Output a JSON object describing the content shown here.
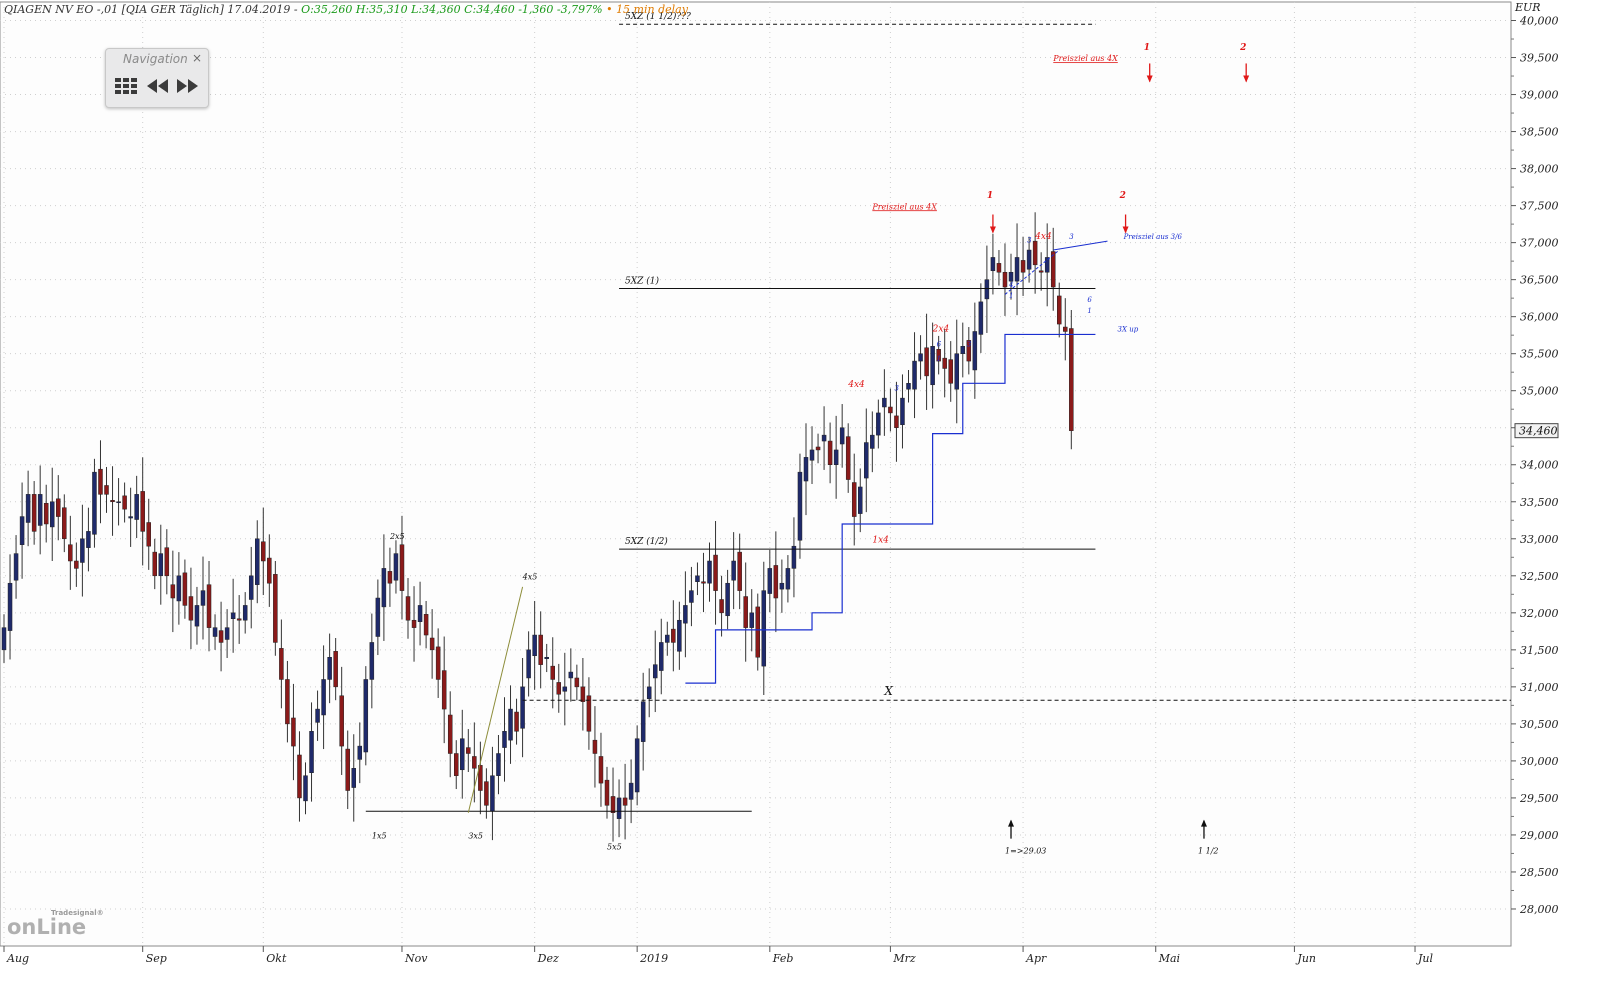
{
  "header": {
    "title": "QIAGEN NV EO -,01 [QIA GER Täglich] 17.04.2019 - ",
    "ohlc": "O:35,260 H:35,310 L:34,360 C:34,460 -1,360 -3,797%",
    "delay": "• 15 min delay"
  },
  "navigation": {
    "title": "Navigation",
    "close": "×",
    "grid_icon": "grid-icon",
    "back_icon": "rewind-icon",
    "forward_icon": "fast-forward-icon"
  },
  "logo": {
    "brand_small": "Tradesignal®",
    "brand_big": "onLine"
  },
  "colors": {
    "up": "#1f2a6b",
    "down": "#8b1a1a",
    "annotation_red": "#e01818",
    "annotation_blue": "#1a2fd0",
    "grid": "#cfcfcf"
  },
  "chart_data": {
    "type": "candlestick",
    "currency_label": "EUR",
    "ylim": [
      27.5,
      40.25
    ],
    "y_ticks": [
      {
        "v": 28.0,
        "label": "28,000"
      },
      {
        "v": 28.5,
        "label": "28,500"
      },
      {
        "v": 29.0,
        "label": "29,000"
      },
      {
        "v": 29.5,
        "label": "29,500"
      },
      {
        "v": 30.0,
        "label": "30,000"
      },
      {
        "v": 30.5,
        "label": "30,500"
      },
      {
        "v": 31.0,
        "label": "31,000"
      },
      {
        "v": 31.5,
        "label": "31,500"
      },
      {
        "v": 32.0,
        "label": "32,000"
      },
      {
        "v": 32.5,
        "label": "32,500"
      },
      {
        "v": 33.0,
        "label": "33,000"
      },
      {
        "v": 33.5,
        "label": "33,500"
      },
      {
        "v": 34.0,
        "label": "34,000"
      },
      {
        "v": 34.5,
        "label": "34,500"
      },
      {
        "v": 35.0,
        "label": "35,000"
      },
      {
        "v": 35.5,
        "label": "35,500"
      },
      {
        "v": 36.0,
        "label": "36,000"
      },
      {
        "v": 36.5,
        "label": "36,500"
      },
      {
        "v": 37.0,
        "label": "37,000"
      },
      {
        "v": 37.5,
        "label": "37,500"
      },
      {
        "v": 38.0,
        "label": "38,000"
      },
      {
        "v": 38.5,
        "label": "38,500"
      },
      {
        "v": 39.0,
        "label": "39,000"
      },
      {
        "v": 39.5,
        "label": "39,500"
      },
      {
        "v": 40.0,
        "label": "40,000"
      }
    ],
    "last_price_label": "34,460",
    "last_price": 34.46,
    "x_range": [
      0,
      258
    ],
    "x_labels": [
      {
        "i": 0,
        "label": "Aug"
      },
      {
        "i": 23,
        "label": "Sep"
      },
      {
        "i": 43,
        "label": "Okt"
      },
      {
        "i": 66,
        "label": "Nov"
      },
      {
        "i": 88,
        "label": "Dez"
      },
      {
        "i": 105,
        "label": "2019"
      },
      {
        "i": 127,
        "label": "Feb"
      },
      {
        "i": 147,
        "label": "Mrz"
      },
      {
        "i": 169,
        "label": "Apr"
      },
      {
        "i": 191,
        "label": "Mai"
      },
      {
        "i": 214,
        "label": "Jun"
      },
      {
        "i": 234,
        "label": "Jul"
      }
    ],
    "closes": [
      31.8,
      32.4,
      32.8,
      33.3,
      33.6,
      33.1,
      33.6,
      33.2,
      33.5,
      33.3,
      33.0,
      32.7,
      32.6,
      33.0,
      33.1,
      33.9,
      33.6,
      33.6,
      33.5,
      33.5,
      33.4,
      33.3,
      33.6,
      33.1,
      32.9,
      32.5,
      32.8,
      32.5,
      32.2,
      32.5,
      32.1,
      31.9,
      32.1,
      32.3,
      31.8,
      31.8,
      31.6,
      31.8,
      32.0,
      31.9,
      32.1,
      32.5,
      33.0,
      32.7,
      32.4,
      31.6,
      31.1,
      30.5,
      30.2,
      29.5,
      29.8,
      30.4,
      30.7,
      31.1,
      31.4,
      31.0,
      30.2,
      29.6,
      29.9,
      30.2,
      31.1,
      31.6,
      32.2,
      32.6,
      32.4,
      32.8,
      32.3,
      31.9,
      31.8,
      32.1,
      31.7,
      31.5,
      31.1,
      30.7,
      30.1,
      29.8,
      30.3,
      30.1,
      29.9,
      29.6,
      29.4,
      29.8,
      30.1,
      30.4,
      30.7,
      30.4,
      31.0,
      31.5,
      31.7,
      31.3,
      31.4,
      31.1,
      30.9,
      31.0,
      31.2,
      31.0,
      30.8,
      30.4,
      30.1,
      29.7,
      29.4,
      29.3,
      29.5,
      29.4,
      29.7,
      30.3,
      30.8,
      31.0,
      31.3,
      31.6,
      31.7,
      31.6,
      31.9,
      32.1,
      32.3,
      32.5,
      32.4,
      32.7,
      32.3,
      32.0,
      32.4,
      32.7,
      32.3,
      31.8,
      32.0,
      31.4,
      32.3,
      32.6,
      32.2,
      32.4,
      32.6,
      32.9,
      33.9,
      34.1,
      34.2,
      34.2,
      34.4,
      34.0,
      34.2,
      34.5,
      33.8,
      33.3,
      33.7,
      34.3,
      34.4,
      34.7,
      34.9,
      34.7,
      34.5,
      34.9,
      35.1,
      35.4,
      35.5,
      35.2,
      35.6,
      35.4,
      35.3,
      35.1,
      35.5,
      35.6,
      35.4,
      35.8,
      36.2,
      36.5,
      36.8,
      36.6,
      36.4,
      36.6,
      36.8,
      36.6,
      36.9,
      36.7,
      36.6,
      36.8,
      36.4,
      35.9,
      35.8,
      34.46
    ],
    "candles_summary": "daily OHLC candles Aug 2018 – 17.04.2019",
    "horizontal_lines": [
      {
        "y": 39.95,
        "from": 102,
        "to": 181,
        "style": "dashed",
        "label": "5XZ (1 1/2)???"
      },
      {
        "y": 36.38,
        "from": 102,
        "to": 181,
        "style": "solid",
        "label": "5XZ (1)"
      },
      {
        "y": 32.86,
        "from": 102,
        "to": 181,
        "style": "solid",
        "label": "5XZ (1/2)"
      },
      {
        "y": 30.82,
        "from": 86,
        "to": 258,
        "style": "dashed",
        "label": "X"
      },
      {
        "y": 29.32,
        "from": 60,
        "to": 124,
        "style": "solid",
        "label": ""
      }
    ],
    "stepline_blue": [
      [
        113,
        31.05
      ],
      [
        118,
        31.05
      ],
      [
        118,
        31.77
      ],
      [
        134,
        31.77
      ],
      [
        134,
        32.0
      ],
      [
        139,
        32.0
      ],
      [
        139,
        33.2
      ],
      [
        154,
        33.2
      ],
      [
        154,
        34.42
      ],
      [
        159,
        34.42
      ],
      [
        159,
        35.1
      ],
      [
        166,
        35.1
      ],
      [
        166,
        35.76
      ],
      [
        181,
        35.76
      ]
    ],
    "annotations_black": [
      {
        "i": 62,
        "y": 28.95,
        "text": "1x5"
      },
      {
        "i": 65,
        "y": 33.0,
        "text": "2x5"
      },
      {
        "i": 78,
        "y": 28.95,
        "text": "3x5"
      },
      {
        "i": 87,
        "y": 32.45,
        "text": "4x5"
      },
      {
        "i": 101,
        "y": 28.8,
        "text": "5x5"
      },
      {
        "i": 167,
        "y": 28.75,
        "text": "1=>29.03"
      },
      {
        "i": 199,
        "y": 28.75,
        "text": "1 1/2"
      }
    ],
    "annotations_red": [
      {
        "i": 141,
        "y": 35.05,
        "text": "4x4"
      },
      {
        "i": 145,
        "y": 32.95,
        "text": "1x4"
      },
      {
        "i": 155,
        "y": 35.8,
        "text": "2x4"
      },
      {
        "i": 172,
        "y": 37.05,
        "text": "4x4"
      },
      {
        "i": 145,
        "y": 37.45,
        "text": "Preisziel aus 4X"
      },
      {
        "i": 175,
        "y": 39.45,
        "text": "Preisziel aus 4X"
      },
      {
        "i": 164,
        "y": 37.6,
        "text": "1"
      },
      {
        "i": 186,
        "y": 37.6,
        "text": "2"
      },
      {
        "i": 190,
        "y": 39.6,
        "text": "1"
      },
      {
        "i": 206,
        "y": 39.6,
        "text": "2"
      }
    ],
    "annotations_blue": [
      {
        "i": 148,
        "y": 35.0,
        "text": "3"
      },
      {
        "i": 155,
        "y": 35.6,
        "text": "6"
      },
      {
        "i": 155,
        "y": 35.4,
        "text": "1"
      },
      {
        "i": 160,
        "y": 35.6,
        "text": "3"
      },
      {
        "i": 167,
        "y": 36.4,
        "text": "4"
      },
      {
        "i": 167,
        "y": 36.25,
        "text": "1"
      },
      {
        "i": 170,
        "y": 37.0,
        "text": "3"
      },
      {
        "i": 177,
        "y": 37.05,
        "text": "3"
      },
      {
        "i": 180,
        "y": 36.2,
        "text": "6"
      },
      {
        "i": 180,
        "y": 36.05,
        "text": "1"
      },
      {
        "i": 185,
        "y": 35.8,
        "text": "3X up"
      },
      {
        "i": 186,
        "y": 37.05,
        "text": "Preisziel aus 3/6"
      }
    ]
  }
}
